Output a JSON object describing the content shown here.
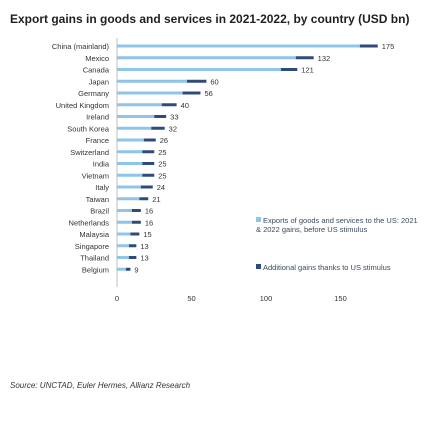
{
  "title": "Export gains in goods and services in 2021-2022, by country (USD bn)",
  "source": "Source: UNCTAD, Euler Hermes, Allianz Research",
  "colors": {
    "base": "#8ec5e8",
    "additional": "#2f4b7c",
    "axis": "#bfbfbf",
    "text": "#333333"
  },
  "chart_data": {
    "type": "bar",
    "orientation": "horizontal",
    "stacked": true,
    "categories": [
      "China (mainland)",
      "Mexico",
      "Canada",
      "Japan",
      "Germany",
      "United Kingdom",
      "Ireland",
      "South Korea",
      "France",
      "Switzerland",
      "India",
      "Vietnam",
      "Italy",
      "Taiwan",
      "Brazil",
      "Netherlands",
      "Malaysia",
      "Singapore",
      "Thailand",
      "Belgium"
    ],
    "series": [
      {
        "name": "Exports of goods and services to the US: 2021 & 2022 gains, before US stimulus",
        "color": "#8ec5e8",
        "values": [
          163,
          120,
          110,
          47,
          44,
          30,
          25,
          23,
          18,
          17,
          17,
          17,
          16,
          15,
          10,
          10,
          9,
          8,
          8,
          6
        ]
      },
      {
        "name": "Additional gains thanks to US stimulus",
        "color": "#2f4b7c",
        "values": [
          12,
          12,
          11,
          13,
          12,
          10,
          8,
          9,
          8,
          8,
          8,
          8,
          8,
          6,
          6,
          6,
          6,
          5,
          5,
          3
        ]
      }
    ],
    "totals": [
      175,
      132,
      121,
      60,
      56,
      40,
      33,
      32,
      26,
      25,
      25,
      25,
      24,
      21,
      16,
      16,
      15,
      13,
      13,
      9
    ],
    "total_labels": [
      "175",
      "132",
      "121",
      "60",
      "56",
      "40",
      "33",
      "32",
      "26",
      "25",
      "25",
      "25",
      "24",
      "21",
      "16",
      "16",
      "15",
      "13",
      "13",
      "9"
    ],
    "xlim": [
      0,
      175
    ],
    "xticks": [
      0,
      50,
      100,
      150
    ],
    "xtick_labels": [
      "0",
      "50",
      "100",
      "150"
    ],
    "legend_position": "right",
    "grid": false
  }
}
